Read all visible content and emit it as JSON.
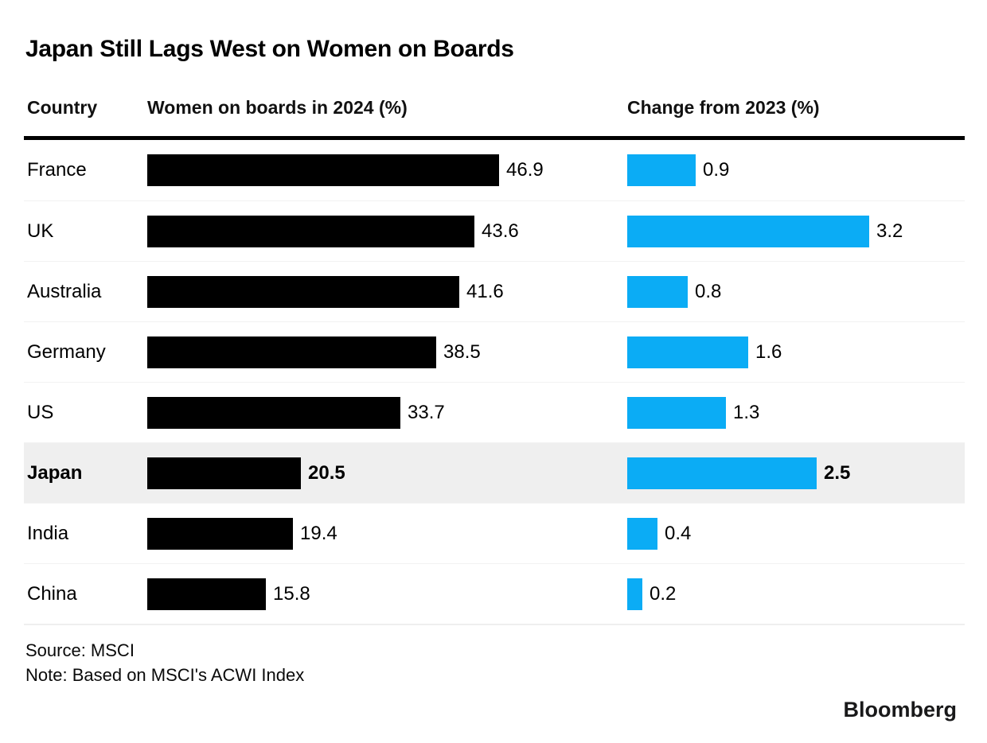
{
  "title": "Japan Still Lags West on Women on Boards",
  "columns": {
    "country": "Country",
    "women_2024": "Women on boards in 2024 (%)",
    "change_2023": "Change from 2023 (%)"
  },
  "chart_data": {
    "type": "bar",
    "orientation": "horizontal",
    "categories": [
      "France",
      "UK",
      "Australia",
      "Germany",
      "US",
      "Japan",
      "India",
      "China"
    ],
    "series": [
      {
        "name": "Women on boards in 2024 (%)",
        "values": [
          46.9,
          43.6,
          41.6,
          38.5,
          33.7,
          20.5,
          19.4,
          15.8
        ],
        "color": "#000000",
        "xlim": [
          0,
          46.9
        ]
      },
      {
        "name": "Change from 2023 (%)",
        "values": [
          0.9,
          3.2,
          0.8,
          1.6,
          1.3,
          2.5,
          0.4,
          0.2
        ],
        "color": "#0bacf5",
        "xlim": [
          0,
          4.4
        ]
      }
    ],
    "data_labels": true,
    "grid": false,
    "legend_position": "none",
    "highlighted_category": "Japan",
    "highlight_color": "#efefef"
  },
  "footer": {
    "source": "Source: MSCI",
    "note": "Note: Based on MSCI's ACWI Index",
    "brand": "Bloomberg"
  },
  "colors": {
    "bar_primary": "#000000",
    "bar_secondary": "#0bacf5",
    "row_highlight": "#efefef",
    "row_separator": "#f2f2f2",
    "header_rule": "#000000"
  }
}
